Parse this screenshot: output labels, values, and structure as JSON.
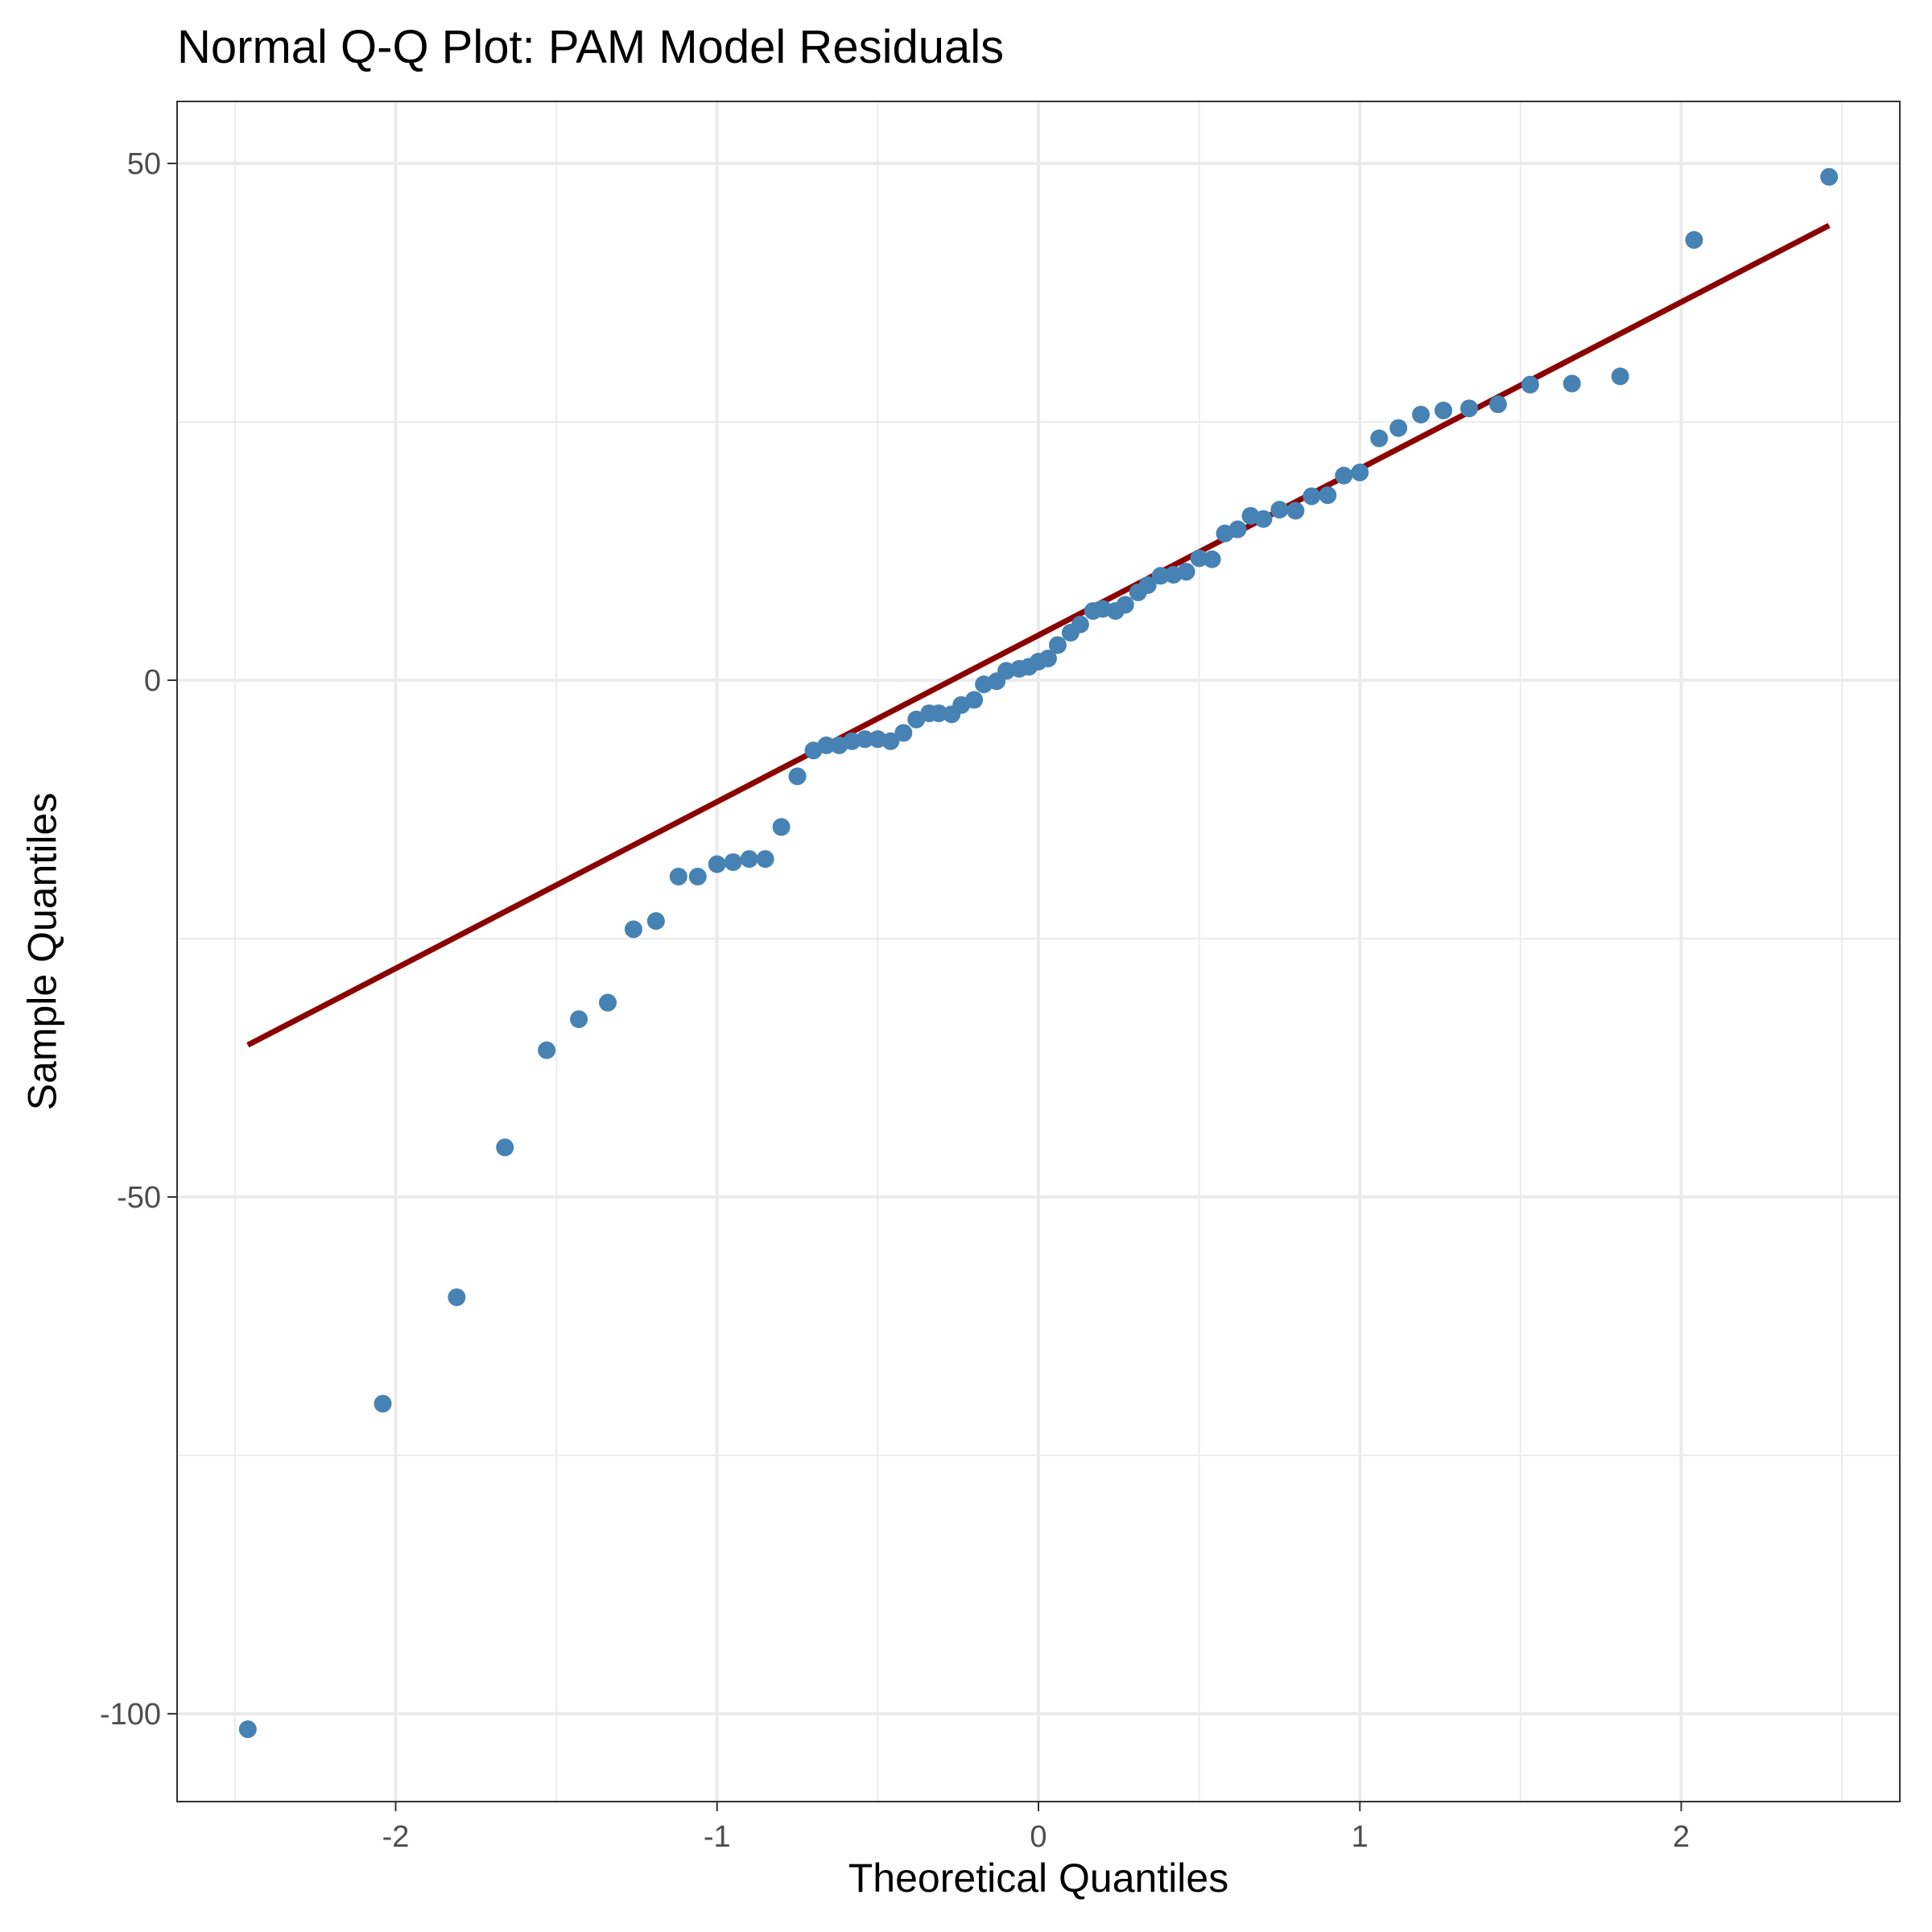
{
  "chart_data": {
    "type": "scatter",
    "title": "Normal Q-Q Plot: PAM Model Residuals",
    "xlabel": "Theoretical Quantiles",
    "ylabel": "Sample Quantiles",
    "xlim": [
      -2.68,
      2.68
    ],
    "ylim": [
      -108.5,
      56
    ],
    "x_ticks": [
      -2,
      -1,
      0,
      1,
      2
    ],
    "x_tick_labels": [
      "-2",
      "-1",
      "0",
      "1",
      "2"
    ],
    "y_ticks": [
      -100,
      -50,
      0,
      50
    ],
    "y_tick_labels": [
      "-100",
      "-50",
      "0",
      "50"
    ],
    "grid": true,
    "colors": {
      "points": "#4682b4",
      "reference_line": "#8b0000"
    },
    "reference_line": {
      "x": [
        -2.46,
        2.46
      ],
      "y": [
        -35.3,
        44.0
      ]
    },
    "series": [
      {
        "x": [
          -2.46,
          -2.04,
          -1.81,
          -1.66,
          -1.53,
          -1.43,
          -1.34,
          -1.26,
          -1.19,
          -1.12,
          -1.06,
          -1.0,
          -0.95,
          -0.9,
          -0.85,
          -0.8,
          -0.75,
          -0.7,
          -0.66,
          -0.62,
          -0.58,
          -0.54,
          -0.5,
          -0.46,
          -0.42,
          -0.38,
          -0.34,
          -0.31,
          -0.27,
          -0.24,
          -0.2,
          -0.17,
          -0.13,
          -0.1,
          -0.06,
          -0.03,
          0.0,
          0.03,
          0.06,
          0.1,
          0.13,
          0.17,
          0.2,
          0.24,
          0.27,
          0.31,
          0.34,
          0.38,
          0.42,
          0.46,
          0.5,
          0.54,
          0.58,
          0.62,
          0.66,
          0.7,
          0.75,
          0.8,
          0.85,
          0.9,
          0.95,
          1.0,
          1.06,
          1.12,
          1.19,
          1.26,
          1.34,
          1.43,
          1.53,
          1.66,
          1.81,
          2.04,
          2.46
        ],
        "y": [
          -101.5,
          -70.0,
          -59.7,
          -45.2,
          -35.8,
          -32.8,
          -31.2,
          -24.1,
          -23.3,
          -19.0,
          -19.0,
          -17.8,
          -17.6,
          -17.3,
          -17.3,
          -14.2,
          -9.3,
          -6.8,
          -6.3,
          -6.3,
          -5.9,
          -5.7,
          -5.7,
          -5.9,
          -5.1,
          -3.8,
          -3.2,
          -3.2,
          -3.3,
          -2.4,
          -1.9,
          -0.4,
          -0.1,
          0.9,
          1.1,
          1.3,
          1.8,
          2.1,
          3.4,
          4.6,
          5.4,
          6.7,
          6.9,
          6.7,
          7.3,
          8.5,
          9.2,
          10.1,
          10.2,
          10.5,
          11.8,
          11.7,
          14.2,
          14.6,
          15.9,
          15.6,
          16.5,
          16.4,
          17.8,
          17.9,
          19.8,
          20.1,
          23.4,
          24.4,
          25.7,
          26.1,
          26.3,
          26.7,
          28.6,
          28.7,
          29.4,
          42.6,
          48.7
        ]
      }
    ]
  }
}
